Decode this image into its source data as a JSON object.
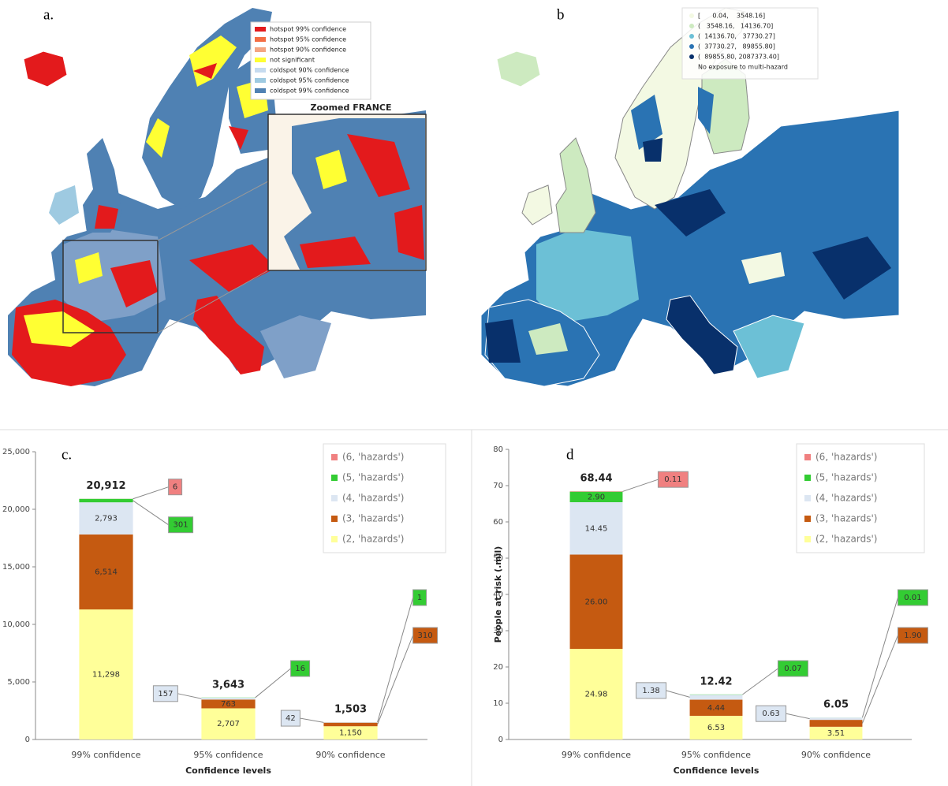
{
  "map_a": {
    "label": "a.",
    "inset_title": "Zoomed FRANCE",
    "legend": [
      {
        "name": "hotspot 99% confidence",
        "color": "#e31a1c"
      },
      {
        "name": "hotspot 95% confidence",
        "color": "#f46d43"
      },
      {
        "name": "hotspot 90% confidence",
        "color": "#f4a582"
      },
      {
        "name": "not significant",
        "color": "#ffff33"
      },
      {
        "name": "coldspot 90% confidence",
        "color": "#c6dbef"
      },
      {
        "name": "coldspot 95% confidence",
        "color": "#9ecae1"
      },
      {
        "name": "coldspot 99% confidence",
        "color": "#4f81b3"
      }
    ]
  },
  "map_b": {
    "label": "b",
    "legend": [
      {
        "name": "[      0.04,    3548.16]",
        "color": "#f3f9e3"
      },
      {
        "name": "(   3548.16,   14136.70]",
        "color": "#cdeac0"
      },
      {
        "name": "(  14136.70,   37730.27]",
        "color": "#6cc0d6"
      },
      {
        "name": "(  37730.27,   89855.80]",
        "color": "#2a73b3"
      },
      {
        "name": "(  89855.80, 2087373.40]",
        "color": "#08306b"
      },
      {
        "name": "No exposure to multi-hazard",
        "color": "#ffffff"
      }
    ]
  },
  "chart_data": [
    {
      "type": "stacked_bar",
      "panel_label": "c.",
      "xlabel": "Confidence levels",
      "categories": [
        "99% confidence",
        "95% confidence",
        "90% confidence"
      ],
      "ylim": [
        0,
        25000
      ],
      "yticks": [
        0,
        {
          "value": 5000,
          "label": "5,000"
        },
        {
          "value": 10000,
          "label": "10,000"
        },
        {
          "value": 15000,
          "label": "15,000"
        },
        {
          "value": 20000,
          "label": "20,000"
        },
        {
          "value": 25000,
          "label": "25,000"
        }
      ],
      "series": [
        {
          "name": "(2, 'hazards')",
          "color": "#ffff99",
          "values": [
            11298,
            2707,
            1150
          ],
          "value_labels": [
            "11,298",
            "2,707",
            "1,150"
          ]
        },
        {
          "name": "(3, 'hazards')",
          "color": "#c55a11",
          "values": [
            6514,
            763,
            310
          ],
          "value_labels": [
            "6,514",
            "763",
            "310"
          ]
        },
        {
          "name": "(4, 'hazards')",
          "color": "#dce6f2",
          "values": [
            2793,
            157,
            42
          ],
          "value_labels": [
            "2,793",
            "157",
            "42"
          ]
        },
        {
          "name": "(5, 'hazards')",
          "color": "#33cc33",
          "values": [
            301,
            16,
            1
          ],
          "value_labels": [
            "301",
            "16",
            "1"
          ]
        },
        {
          "name": "(6, 'hazards')",
          "color": "#f08080",
          "values": [
            6,
            0,
            0
          ],
          "value_labels": [
            "6",
            null,
            null
          ]
        }
      ],
      "totals": [
        20912,
        3643,
        1503
      ],
      "total_labels": [
        "20,912",
        "3,643",
        "1,503"
      ]
    },
    {
      "type": "stacked_bar",
      "panel_label": "d",
      "xlabel": "Confidence levels",
      "ylabel": "People at risk (.mil)",
      "categories": [
        "99% confidence",
        "95% confidence",
        "90% confidence"
      ],
      "ylim": [
        0,
        80
      ],
      "yticks": [
        0,
        10,
        20,
        30,
        40,
        50,
        60,
        70,
        80
      ],
      "series": [
        {
          "name": "(2, 'hazards')",
          "color": "#ffff99",
          "values": [
            24.98,
            6.53,
            3.51
          ],
          "value_labels": [
            "24.98",
            "6.53",
            "3.51"
          ]
        },
        {
          "name": "(3, 'hazards')",
          "color": "#c55a11",
          "values": [
            26.0,
            4.44,
            1.9
          ],
          "value_labels": [
            "26.00",
            "4.44",
            "1.90"
          ]
        },
        {
          "name": "(4, 'hazards')",
          "color": "#dce6f2",
          "values": [
            14.45,
            1.38,
            0.63
          ],
          "value_labels": [
            "14.45",
            "1.38",
            "0.63"
          ]
        },
        {
          "name": "(5, 'hazards')",
          "color": "#33cc33",
          "values": [
            2.9,
            0.07,
            0.01
          ],
          "value_labels": [
            "2.90",
            "0.07",
            "0.01"
          ]
        },
        {
          "name": "(6, 'hazards')",
          "color": "#f08080",
          "values": [
            0.11,
            0,
            0
          ],
          "value_labels": [
            "0.11",
            null,
            null
          ]
        }
      ],
      "totals": [
        68.44,
        12.42,
        6.05
      ],
      "total_labels": [
        "68.44",
        "12.42",
        "6.05"
      ]
    }
  ]
}
